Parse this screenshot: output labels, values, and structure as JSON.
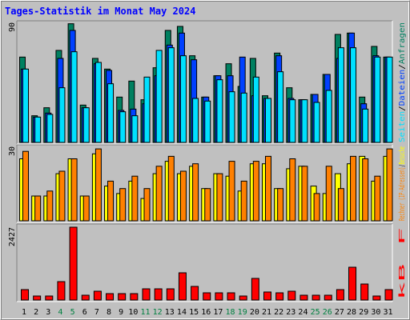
{
  "chart_data": [
    {
      "type": "bar",
      "title": "Tages-Statistik im Monat May 2024",
      "legend_separator": "/",
      "ylim": [
        0,
        90
      ],
      "yticks": [
        90
      ],
      "series": [
        {
          "name": "Anfragen",
          "color": "#008060",
          "values": [
            64,
            20,
            26,
            69,
            89,
            28,
            63,
            55,
            34,
            46,
            32,
            56,
            84,
            87,
            65,
            34,
            50,
            59,
            42,
            63,
            35,
            67,
            41,
            32,
            36,
            51,
            81,
            82,
            34,
            72,
            64
          ]
        },
        {
          "name": "Dateien",
          "color": "#0040ff",
          "values": [
            55,
            19,
            22,
            63,
            84,
            26,
            59,
            54,
            24,
            25,
            29,
            50,
            73,
            82,
            62,
            34,
            50,
            50,
            64,
            35,
            33,
            65,
            33,
            32,
            36,
            51,
            63,
            82,
            29,
            65,
            64
          ]
        },
        {
          "name": "Seiten",
          "color": "#00e0ff",
          "values": [
            55,
            19,
            21,
            41,
            68,
            26,
            60,
            44,
            23,
            20,
            49,
            69,
            71,
            65,
            33,
            31,
            47,
            38,
            37,
            49,
            33,
            53,
            32,
            32,
            30,
            39,
            71,
            71,
            25,
            64,
            64
          ]
        }
      ]
    },
    {
      "type": "bar",
      "legend_separator": "/",
      "ylim": [
        0,
        30
      ],
      "yticks": [
        30
      ],
      "series": [
        {
          "name": "Besuche",
          "color": "#ffff00",
          "values": [
            25,
            10,
            10,
            19,
            25,
            10,
            27,
            14,
            11,
            16,
            9,
            19,
            24,
            19,
            22,
            13,
            19,
            18,
            12,
            23,
            23,
            13,
            21,
            22,
            14,
            11,
            19,
            23,
            26,
            16,
            26
          ]
        },
        {
          "name": "Rechner (IP-Adressen)",
          "color": "#ff8000",
          "values": [
            28,
            10,
            12,
            20,
            25,
            10,
            29,
            16,
            13,
            18,
            13,
            22,
            26,
            20,
            23,
            13,
            19,
            24,
            16,
            24,
            26,
            13,
            25,
            22,
            11,
            22,
            13,
            26,
            25,
            18,
            29
          ]
        }
      ]
    },
    {
      "type": "bar",
      "legend_separator": "/",
      "ylim": [
        0,
        2427
      ],
      "yticks": [
        2427
      ],
      "categories": [
        "1",
        "2",
        "3",
        "4",
        "5",
        "6",
        "7",
        "8",
        "9",
        "10",
        "11",
        "12",
        "13",
        "14",
        "15",
        "16",
        "17",
        "18",
        "19",
        "20",
        "21",
        "22",
        "23",
        "24",
        "25",
        "26",
        "27",
        "28",
        "29",
        "30",
        "31"
      ],
      "highlight_categories": [
        "4",
        "5",
        "11",
        "12",
        "18",
        "19",
        "25",
        "26"
      ],
      "highlight_color": "#008040",
      "series": [
        {
          "name": "kB F",
          "color": "#ff0000",
          "values": [
            347,
            133,
            133,
            613,
            2427,
            160,
            293,
            213,
            213,
            213,
            373,
            373,
            373,
            907,
            453,
            240,
            240,
            240,
            133,
            720,
            267,
            240,
            293,
            160,
            160,
            160,
            347,
            1093,
            533,
            133,
            347
          ]
        }
      ]
    }
  ]
}
